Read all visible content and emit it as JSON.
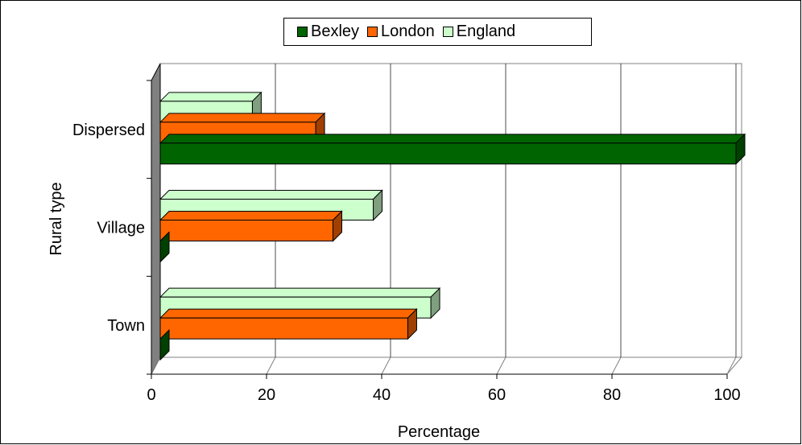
{
  "chart_data": {
    "type": "bar",
    "orientation": "horizontal",
    "categories": [
      "Dispersed",
      "Village",
      "Town"
    ],
    "series": [
      {
        "name": "Bexley",
        "values": [
          100,
          0,
          0
        ],
        "color": "#006400",
        "side": "#004000"
      },
      {
        "name": "London",
        "values": [
          27,
          30,
          43
        ],
        "color": "#FF6600",
        "side": "#A04000"
      },
      {
        "name": "England",
        "values": [
          16,
          37,
          47
        ],
        "color": "#CCFFCC",
        "side": "#7F9F7F"
      }
    ],
    "xlabel": "Percentage",
    "ylabel": "Rural type",
    "xlim": [
      0,
      100
    ],
    "xticks": [
      0,
      20,
      40,
      60,
      80,
      100
    ],
    "grid": "vertical",
    "legend_position": "top"
  }
}
